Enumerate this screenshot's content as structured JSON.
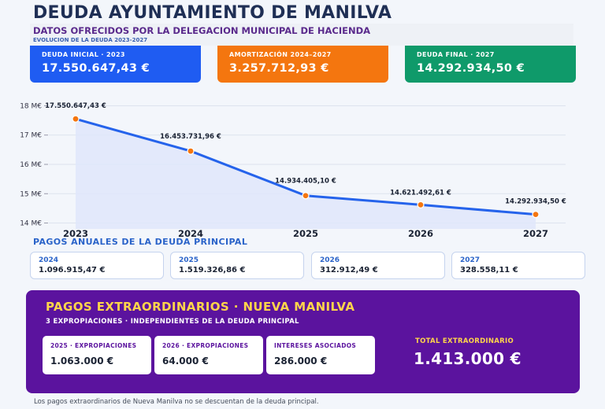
{
  "title": "DEUDA AYUNTAMIENTO DE MANILVA",
  "subtitle": "DATOS OFRECIDOS POR LA DELEGACION MUNICIPAL DE HACIENDA",
  "subtitle2": "EVOLUCION DE LA DEUDA 2023-2027",
  "kpis": [
    {
      "label": "DEUDA INICIAL · 2023",
      "value": "17.550.647,43 €",
      "color": "#1f5cf2"
    },
    {
      "label": "AMORTIZACIÓN 2024–2027",
      "value": "3.257.712,93 €",
      "color": "#f4760f"
    },
    {
      "label": "DEUDA FINAL · 2027",
      "value": "14.292.934,50 €",
      "color": "#0f9a6a"
    }
  ],
  "chart_data": {
    "type": "line",
    "x": [
      "2023",
      "2024",
      "2025",
      "2026",
      "2027"
    ],
    "values": [
      17550647.43,
      16453731.96,
      14934405.1,
      14621492.61,
      14292934.5
    ],
    "point_labels": [
      "17.550.647,43 €",
      "16.453.731,96 €",
      "14.934.405,10 €",
      "14.621.492,61 €",
      "14.292.934,50 €"
    ],
    "yticks": [
      14000000,
      15000000,
      16000000,
      17000000,
      18000000
    ],
    "ytick_labels": [
      "14 M€",
      "15 M€",
      "16 M€",
      "17 M€",
      "18 M€"
    ],
    "ylim": [
      13800000,
      18200000
    ],
    "grid": true,
    "line_color": "#2563eb",
    "marker_color": "#f4760f",
    "fill_color": "#dfe6fb"
  },
  "pagos": {
    "title": "PAGOS ANUALES DE LA DEUDA PRINCIPAL",
    "items": [
      {
        "year": "2024",
        "value": "1.096.915,47 €"
      },
      {
        "year": "2025",
        "value": "1.519.326,86 €"
      },
      {
        "year": "2026",
        "value": "312.912,49 €"
      },
      {
        "year": "2027",
        "value": "328.558,11 €"
      }
    ]
  },
  "extra": {
    "title": "PAGOS EXTRAORDINARIOS · NUEVA MANILVA",
    "subtitle": "3 EXPROPIACIONES  ·  INDEPENDIENTES DE LA DEUDA PRINCIPAL",
    "boxes": [
      {
        "label": "2025 · EXPROPIACIONES",
        "value": "1.063.000 €"
      },
      {
        "label": "2026 · EXPROPIACIONES",
        "value": "64.000 €"
      },
      {
        "label": "INTERESES ASOCIADOS",
        "value": "286.000 €"
      }
    ],
    "total_label": "TOTAL EXTRAORDINARIO",
    "total_value": "1.413.000 €"
  },
  "footnote": "Los pagos extraordinarios de Nueva Manilva no se descuentan de la deuda principal."
}
